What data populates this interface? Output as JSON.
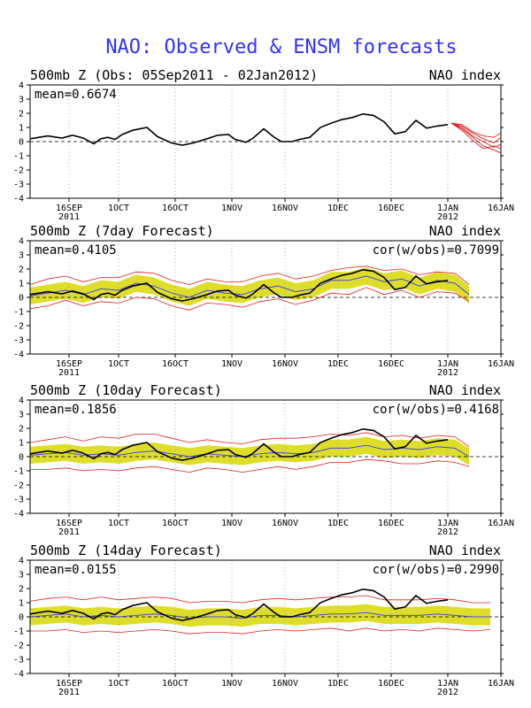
{
  "page": {
    "title": "NAO: Observed & ENSM forecasts"
  },
  "x_ticks": [
    {
      "day": 11,
      "label": "16SEP",
      "sub": "2011"
    },
    {
      "day": 25,
      "label": "1OCT",
      "sub": ""
    },
    {
      "day": 41,
      "label": "16OCT",
      "sub": ""
    },
    {
      "day": 57,
      "label": "1NOV",
      "sub": ""
    },
    {
      "day": 72,
      "label": "16NOV",
      "sub": ""
    },
    {
      "day": 87,
      "label": "1DEC",
      "sub": ""
    },
    {
      "day": 102,
      "label": "16DEC",
      "sub": ""
    },
    {
      "day": 118,
      "label": "1JAN",
      "sub": "2012"
    },
    {
      "day": 133,
      "label": "16JAN",
      "sub": ""
    }
  ],
  "y_ticks": [
    4,
    3,
    2,
    1,
    0,
    -1,
    -2,
    -3,
    -4
  ],
  "colors": {
    "title": "#3232ff",
    "observed": "#000000",
    "ensemble_members": "#e02020",
    "spread": "#dede2a",
    "ens_mean": "#4848e0",
    "axis": "#000000"
  },
  "chart_data": [
    {
      "type": "line",
      "title": "500mb Z (Obs: 05Sep2011 - 02Jan2012)",
      "right_label": "NAO index",
      "mean_label": "mean=0.6674",
      "cor_label": "",
      "xlim": [
        0,
        133
      ],
      "ylim": [
        -4,
        4
      ],
      "grid": "dotted-vertical",
      "x_unit": "days since 05Sep2011",
      "observed": {
        "x": [
          0,
          5,
          9,
          12,
          15,
          18,
          20,
          22,
          24,
          26,
          29,
          33,
          36,
          40,
          43,
          46,
          50,
          53,
          56,
          58,
          61,
          63,
          66,
          69,
          71,
          74,
          76,
          79,
          82,
          85,
          88,
          91,
          94,
          97,
          100,
          103,
          106,
          109,
          112,
          115,
          118
        ],
        "y": [
          0.2,
          0.4,
          0.25,
          0.45,
          0.25,
          -0.15,
          0.2,
          0.3,
          0.15,
          0.5,
          0.8,
          1.0,
          0.35,
          -0.1,
          -0.25,
          -0.1,
          0.2,
          0.45,
          0.5,
          0.15,
          -0.05,
          0.25,
          0.9,
          0.3,
          0.0,
          0.0,
          0.15,
          0.3,
          1.0,
          1.3,
          1.55,
          1.7,
          1.95,
          1.85,
          1.4,
          0.55,
          0.7,
          1.5,
          0.95,
          1.1,
          1.2
        ]
      },
      "ensemble_members": [
        {
          "x": [
            119,
            122,
            125,
            128,
            131,
            133
          ],
          "y": [
            1.3,
            0.9,
            0.3,
            -0.3,
            -0.6,
            -0.8
          ]
        },
        {
          "x": [
            119,
            122,
            125,
            128,
            131,
            133
          ],
          "y": [
            1.3,
            1.1,
            0.6,
            0.2,
            -0.1,
            0.3
          ]
        },
        {
          "x": [
            119,
            122,
            125,
            128,
            131,
            133
          ],
          "y": [
            1.3,
            1.0,
            0.4,
            0.0,
            -0.4,
            -0.2
          ]
        },
        {
          "x": [
            119,
            122,
            125,
            128,
            131,
            133
          ],
          "y": [
            1.3,
            0.8,
            0.1,
            -0.5,
            -0.3,
            -0.5
          ]
        },
        {
          "x": [
            119,
            122,
            125,
            128,
            131,
            133
          ],
          "y": [
            1.3,
            1.2,
            0.7,
            0.4,
            0.3,
            0.6
          ]
        }
      ]
    },
    {
      "type": "line",
      "title": "500mb Z (7day Forecast)",
      "right_label": "NAO index",
      "mean_label": "mean=0.4105",
      "cor_label": "cor(w/obs)=0.7099",
      "xlim": [
        0,
        133
      ],
      "ylim": [
        -4,
        4
      ],
      "grid": "dotted-vertical",
      "x_unit": "days since 05Sep2011",
      "observed": {
        "x": [
          0,
          5,
          9,
          12,
          15,
          18,
          20,
          22,
          24,
          26,
          29,
          33,
          36,
          40,
          43,
          46,
          50,
          53,
          56,
          58,
          61,
          63,
          66,
          69,
          71,
          74,
          76,
          79,
          82,
          85,
          88,
          91,
          94,
          97,
          100,
          103,
          106,
          109,
          112,
          115,
          118
        ],
        "y": [
          0.2,
          0.4,
          0.25,
          0.45,
          0.25,
          -0.15,
          0.2,
          0.3,
          0.15,
          0.5,
          0.8,
          1.0,
          0.35,
          -0.1,
          -0.25,
          -0.1,
          0.2,
          0.45,
          0.5,
          0.15,
          -0.05,
          0.25,
          0.9,
          0.3,
          0.0,
          0.0,
          0.15,
          0.3,
          1.0,
          1.3,
          1.55,
          1.7,
          1.95,
          1.85,
          1.4,
          0.55,
          0.7,
          1.5,
          0.95,
          1.1,
          1.2
        ]
      },
      "ens_mean": {
        "x": [
          0,
          5,
          10,
          15,
          20,
          25,
          30,
          35,
          40,
          45,
          50,
          55,
          60,
          65,
          70,
          75,
          80,
          85,
          90,
          95,
          100,
          105,
          110,
          115,
          120,
          124
        ],
        "y": [
          0.1,
          0.3,
          0.5,
          0.2,
          0.6,
          0.5,
          1.0,
          0.8,
          0.3,
          0.0,
          0.5,
          0.3,
          0.2,
          0.6,
          0.8,
          0.4,
          0.6,
          1.2,
          1.2,
          1.5,
          1.1,
          1.3,
          0.8,
          1.2,
          1.0,
          0.2
        ]
      },
      "spread": {
        "upper_offset": 0.6,
        "lower_offset": 0.6
      },
      "envelope_upper": {
        "x": [
          0,
          5,
          10,
          15,
          20,
          25,
          30,
          35,
          40,
          45,
          50,
          55,
          60,
          65,
          70,
          75,
          80,
          85,
          90,
          95,
          100,
          105,
          110,
          115,
          120,
          124
        ],
        "y": [
          0.9,
          1.3,
          1.5,
          1.1,
          1.4,
          1.4,
          1.8,
          1.7,
          1.2,
          0.9,
          1.3,
          1.1,
          1.1,
          1.5,
          1.7,
          1.3,
          1.5,
          1.9,
          2.1,
          2.2,
          1.9,
          2.0,
          1.6,
          1.8,
          1.7,
          0.9
        ]
      },
      "envelope_lower": {
        "x": [
          0,
          5,
          10,
          15,
          20,
          25,
          30,
          35,
          40,
          45,
          50,
          55,
          60,
          65,
          70,
          75,
          80,
          85,
          90,
          95,
          100,
          105,
          110,
          115,
          120,
          124
        ],
        "y": [
          -0.8,
          -0.6,
          -0.2,
          -0.6,
          -0.3,
          -0.4,
          0.0,
          -0.1,
          -0.6,
          -0.9,
          -0.4,
          -0.5,
          -0.7,
          -0.3,
          -0.1,
          -0.5,
          -0.2,
          0.3,
          0.2,
          0.7,
          0.2,
          0.5,
          0.0,
          0.4,
          0.3,
          -0.3
        ]
      }
    },
    {
      "type": "line",
      "title": "500mb Z (10day Forecast)",
      "right_label": "NAO index",
      "mean_label": "mean=0.1856",
      "cor_label": "cor(w/obs)=0.4168",
      "xlim": [
        0,
        133
      ],
      "ylim": [
        -4,
        4
      ],
      "grid": "dotted-vertical",
      "x_unit": "days since 05Sep2011",
      "observed": {
        "x": [
          0,
          5,
          9,
          12,
          15,
          18,
          20,
          22,
          24,
          26,
          29,
          33,
          36,
          40,
          43,
          46,
          50,
          53,
          56,
          58,
          61,
          63,
          66,
          69,
          71,
          74,
          76,
          79,
          82,
          85,
          88,
          91,
          94,
          97,
          100,
          103,
          106,
          109,
          112,
          115,
          118
        ],
        "y": [
          0.2,
          0.4,
          0.25,
          0.45,
          0.25,
          -0.15,
          0.2,
          0.3,
          0.15,
          0.5,
          0.8,
          1.0,
          0.35,
          -0.1,
          -0.25,
          -0.1,
          0.2,
          0.45,
          0.5,
          0.15,
          -0.05,
          0.25,
          0.9,
          0.3,
          0.0,
          0.0,
          0.15,
          0.3,
          1.0,
          1.3,
          1.55,
          1.7,
          1.95,
          1.85,
          1.4,
          0.55,
          0.7,
          1.5,
          0.95,
          1.1,
          1.2
        ]
      },
      "ens_mean": {
        "x": [
          0,
          5,
          10,
          15,
          20,
          25,
          30,
          35,
          40,
          45,
          50,
          55,
          60,
          65,
          70,
          75,
          80,
          85,
          90,
          95,
          100,
          105,
          110,
          115,
          120,
          124
        ],
        "y": [
          0.1,
          0.2,
          0.3,
          0.1,
          0.2,
          0.1,
          0.3,
          0.4,
          0.2,
          0.0,
          0.2,
          0.1,
          0.0,
          0.2,
          0.3,
          0.2,
          0.3,
          0.6,
          0.6,
          0.8,
          0.5,
          0.6,
          0.5,
          0.7,
          0.6,
          0.0
        ]
      },
      "spread": {
        "upper_offset": 0.6,
        "lower_offset": 0.6
      },
      "envelope_upper": {
        "x": [
          0,
          5,
          10,
          15,
          20,
          25,
          30,
          35,
          40,
          45,
          50,
          55,
          60,
          65,
          70,
          75,
          80,
          85,
          90,
          95,
          100,
          105,
          110,
          115,
          120,
          124
        ],
        "y": [
          1.0,
          1.2,
          1.4,
          1.1,
          1.4,
          1.3,
          1.6,
          1.6,
          1.3,
          1.0,
          1.2,
          1.0,
          0.9,
          1.2,
          1.3,
          1.3,
          1.4,
          1.6,
          1.5,
          1.7,
          1.4,
          1.5,
          1.3,
          1.5,
          1.4,
          0.7
        ]
      },
      "envelope_lower": {
        "x": [
          0,
          5,
          10,
          15,
          20,
          25,
          30,
          35,
          40,
          45,
          50,
          55,
          60,
          65,
          70,
          75,
          80,
          85,
          90,
          95,
          100,
          105,
          110,
          115,
          120,
          124
        ],
        "y": [
          -0.9,
          -0.9,
          -0.8,
          -1.0,
          -0.9,
          -1.0,
          -0.8,
          -0.7,
          -0.9,
          -1.1,
          -0.8,
          -0.9,
          -1.1,
          -0.9,
          -0.7,
          -0.9,
          -0.7,
          -0.4,
          -0.4,
          -0.2,
          -0.3,
          -0.5,
          -0.5,
          -0.3,
          -0.4,
          -0.7
        ]
      }
    },
    {
      "type": "line",
      "title": "500mb Z (14day Forecast)",
      "right_label": "NAO index",
      "mean_label": "mean=0.0155",
      "cor_label": "cor(w/obs)=0.2990",
      "xlim": [
        0,
        133
      ],
      "ylim": [
        -4,
        4
      ],
      "grid": "dotted-vertical",
      "x_unit": "days since 05Sep2011",
      "observed": {
        "x": [
          0,
          5,
          9,
          12,
          15,
          18,
          20,
          22,
          24,
          26,
          29,
          33,
          36,
          40,
          43,
          46,
          50,
          53,
          56,
          58,
          61,
          63,
          66,
          69,
          71,
          74,
          76,
          79,
          82,
          85,
          88,
          91,
          94,
          97,
          100,
          103,
          106,
          109,
          112,
          115,
          118
        ],
        "y": [
          0.2,
          0.4,
          0.25,
          0.45,
          0.25,
          -0.15,
          0.2,
          0.3,
          0.15,
          0.5,
          0.8,
          1.0,
          0.35,
          -0.1,
          -0.25,
          -0.1,
          0.2,
          0.45,
          0.5,
          0.15,
          -0.05,
          0.25,
          0.9,
          0.3,
          0.0,
          0.0,
          0.15,
          0.3,
          1.0,
          1.3,
          1.55,
          1.7,
          1.95,
          1.85,
          1.4,
          0.55,
          0.7,
          1.5,
          0.95,
          1.1,
          1.2
        ]
      },
      "ens_mean": {
        "x": [
          0,
          5,
          10,
          15,
          20,
          25,
          30,
          35,
          40,
          45,
          50,
          55,
          60,
          65,
          70,
          75,
          80,
          85,
          90,
          95,
          100,
          105,
          110,
          115,
          120,
          125,
          130
        ],
        "y": [
          0.0,
          0.1,
          0.2,
          0.0,
          0.1,
          0.0,
          0.1,
          0.2,
          0.1,
          -0.1,
          0.0,
          0.0,
          -0.1,
          0.1,
          0.1,
          0.0,
          0.1,
          0.2,
          0.2,
          0.3,
          0.1,
          0.1,
          0.1,
          0.2,
          0.1,
          0.0,
          0.0
        ]
      },
      "spread": {
        "upper_offset": 0.6,
        "lower_offset": 0.6
      },
      "envelope_upper": {
        "x": [
          0,
          5,
          10,
          15,
          20,
          25,
          30,
          35,
          40,
          45,
          50,
          55,
          60,
          65,
          70,
          75,
          80,
          85,
          90,
          95,
          100,
          105,
          110,
          115,
          120,
          125,
          130
        ],
        "y": [
          1.1,
          1.3,
          1.4,
          1.2,
          1.4,
          1.2,
          1.3,
          1.4,
          1.3,
          1.0,
          1.1,
          1.1,
          1.0,
          1.2,
          1.3,
          1.2,
          1.3,
          1.4,
          1.4,
          1.5,
          1.2,
          1.2,
          1.2,
          1.3,
          1.2,
          1.0,
          1.0
        ]
      },
      "envelope_lower": {
        "x": [
          0,
          5,
          10,
          15,
          20,
          25,
          30,
          35,
          40,
          45,
          50,
          55,
          60,
          65,
          70,
          75,
          80,
          85,
          90,
          95,
          100,
          105,
          110,
          115,
          120,
          125,
          130
        ],
        "y": [
          -1.0,
          -1.0,
          -0.9,
          -1.1,
          -1.0,
          -1.1,
          -1.0,
          -0.9,
          -1.0,
          -1.2,
          -1.1,
          -1.1,
          -1.2,
          -1.0,
          -0.9,
          -1.0,
          -0.9,
          -0.8,
          -1.0,
          -0.8,
          -1.0,
          -0.9,
          -1.0,
          -0.8,
          -0.9,
          -1.0,
          -0.9
        ]
      }
    }
  ]
}
